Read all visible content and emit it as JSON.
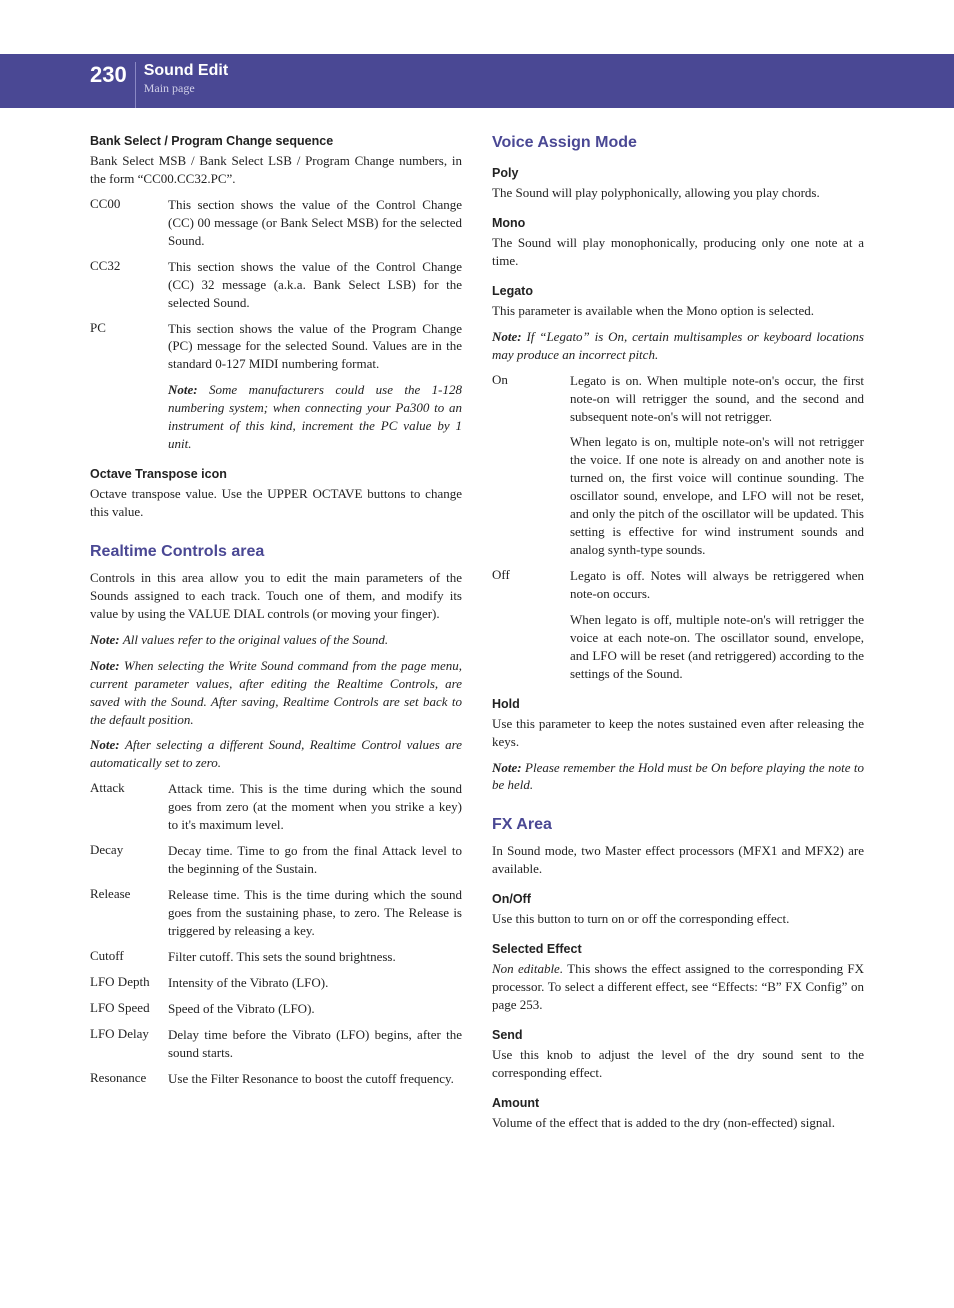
{
  "header": {
    "page_number": "230",
    "chapter_title": "Sound Edit",
    "subtitle": "Main page"
  },
  "left": {
    "s1": {
      "title": "Bank Select / Program Change sequence",
      "intro": "Bank Select MSB / Bank Select LSB / Program Change numbers, in the form “CC00.CC32.PC”.",
      "rows": [
        {
          "term": "CC00",
          "desc": "This section shows the value of the Control Change (CC) 00 message (or Bank Select MSB) for the selected Sound."
        },
        {
          "term": "CC32",
          "desc": "This section shows the value of the Control Change (CC) 32 message (a.k.a. Bank Select LSB) for the selected Sound."
        },
        {
          "term": "PC",
          "desc": "This section shows the value of the Program Change (PC) message for the selected Sound. Values are in the standard 0-127 MIDI numbering format.",
          "note": "Some manufacturers could use the 1-128 numbering system; when connecting your Pa300 to an instrument of this kind, increment the PC value by 1 unit."
        }
      ]
    },
    "s2": {
      "title": "Octave Transpose icon",
      "body": "Octave transpose value. Use the UPPER OCTAVE buttons to change this value."
    },
    "s3": {
      "title": "Realtime Controls area",
      "intro": "Controls in this area allow you to edit the main parameters of the Sounds assigned to each track. Touch one of them, and modify its value by using the VALUE DIAL controls (or moving your finger).",
      "note1": "All values refer to the original values of the Sound.",
      "note2": "When selecting the Write Sound command from the page menu, current parameter values, after editing the Realtime Controls, are saved with the Sound. After saving, Realtime Controls are set back to the default position.",
      "note3": "After selecting a different Sound, Realtime Control values are automatically set to zero.",
      "rows": [
        {
          "term": "Attack",
          "desc": "Attack time. This is the time during which the sound goes from zero (at the moment when you strike a key) to it's maximum level."
        },
        {
          "term": "Decay",
          "desc": "Decay time. Time to go from the final Attack level to the beginning of the Sustain."
        },
        {
          "term": "Release",
          "desc": "Release time. This is the time during which the sound goes from the sustaining phase, to zero. The Release is triggered by releasing a key."
        },
        {
          "term": "Cutoff",
          "desc": "Filter cutoff. This sets the sound brightness."
        },
        {
          "term": "LFO Depth",
          "desc": "Intensity of the Vibrato (LFO)."
        },
        {
          "term": "LFO Speed",
          "desc": "Speed of the Vibrato (LFO)."
        },
        {
          "term": "LFO Delay",
          "desc": "Delay time before the Vibrato (LFO) begins, after the sound starts."
        },
        {
          "term": "Resonance",
          "desc": "Use the Filter Resonance to boost the cutoff frequency."
        }
      ]
    }
  },
  "right": {
    "s1": {
      "title": "Voice Assign Mode",
      "poly": {
        "label": "Poly",
        "body": "The Sound will play polyphonically, allowing you play chords."
      },
      "mono": {
        "label": "Mono",
        "body": "The Sound will play monophonically, producing only one note at a time."
      },
      "legato": {
        "label": "Legato",
        "intro": "This parameter is available when the Mono option is selected.",
        "note": "If “Legato” is On, certain multisamples or keyboard locations may produce an incorrect pitch.",
        "rows": [
          {
            "term": "On",
            "p1": "Legato is on. When multiple note-on's occur, the first note-on will retrigger the sound, and the second and subsequent note-on's will not retrigger.",
            "p2": "When legato is on, multiple note-on's will not retrigger the voice. If one note is already on and another note is turned on, the first voice will continue sounding. The oscillator sound, envelope, and LFO will not be reset, and only the pitch of the oscillator will be updated. This setting is effective for wind instrument sounds and analog synth-type sounds."
          },
          {
            "term": "Off",
            "p1": "Legato is off. Notes will always be retriggered when note-on occurs.",
            "p2": "When legato is off, multiple note-on's will retrigger the voice at each note-on. The oscillator sound, envelope, and LFO will be reset (and retriggered) according to the settings of the Sound."
          }
        ]
      },
      "hold": {
        "label": "Hold",
        "body": "Use this parameter to keep the notes sustained even after releasing the keys.",
        "note": "Please remember the Hold must be On before playing the note to be held."
      }
    },
    "s2": {
      "title": "FX Area",
      "intro": "In Sound mode, two Master effect processors (MFX1 and MFX2) are available.",
      "onoff": {
        "label": "On/Off",
        "body": "Use this button to turn on or off the corresponding effect."
      },
      "selected": {
        "label": "Selected Effect",
        "prefix": "Non editable.",
        "body": " This shows the effect assigned to the corresponding FX processor. To select a different effect, see “Effects: “B” FX Config” on page 253."
      },
      "send": {
        "label": "Send",
        "body": "Use this knob to adjust the level of the dry sound sent to the corresponding effect."
      },
      "amount": {
        "label": "Amount",
        "body": "Volume of the effect that is added to the dry (non-effected) signal."
      }
    }
  }
}
